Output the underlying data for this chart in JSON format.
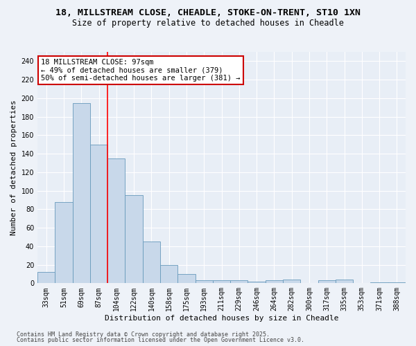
{
  "title_line1": "18, MILLSTREAM CLOSE, CHEADLE, STOKE-ON-TRENT, ST10 1XN",
  "title_line2": "Size of property relative to detached houses in Cheadle",
  "xlabel": "Distribution of detached houses by size in Cheadle",
  "ylabel": "Number of detached properties",
  "categories": [
    "33sqm",
    "51sqm",
    "69sqm",
    "87sqm",
    "104sqm",
    "122sqm",
    "140sqm",
    "158sqm",
    "175sqm",
    "193sqm",
    "211sqm",
    "229sqm",
    "246sqm",
    "264sqm",
    "282sqm",
    "300sqm",
    "317sqm",
    "335sqm",
    "353sqm",
    "371sqm",
    "388sqm"
  ],
  "values": [
    12,
    88,
    195,
    150,
    135,
    95,
    45,
    20,
    10,
    3,
    3,
    3,
    2,
    3,
    4,
    0,
    3,
    4,
    0,
    1,
    1
  ],
  "bar_color": "#c8d8ea",
  "bar_edge_color": "#6699bb",
  "red_line_x": 3.5,
  "annotation_text": "18 MILLSTREAM CLOSE: 97sqm\n← 49% of detached houses are smaller (379)\n50% of semi-detached houses are larger (381) →",
  "annotation_box_color": "#ffffff",
  "annotation_box_edge": "#cc0000",
  "ylim": [
    0,
    250
  ],
  "yticks": [
    0,
    20,
    40,
    60,
    80,
    100,
    120,
    140,
    160,
    180,
    200,
    220,
    240
  ],
  "background_color": "#e8eef6",
  "fig_background_color": "#eef2f8",
  "grid_color": "#ffffff",
  "footer_line1": "Contains HM Land Registry data © Crown copyright and database right 2025.",
  "footer_line2": "Contains public sector information licensed under the Open Government Licence v3.0.",
  "title_fontsize": 9.5,
  "subtitle_fontsize": 8.5,
  "axis_label_fontsize": 8,
  "tick_fontsize": 7,
  "annotation_fontsize": 7.5,
  "footer_fontsize": 6
}
